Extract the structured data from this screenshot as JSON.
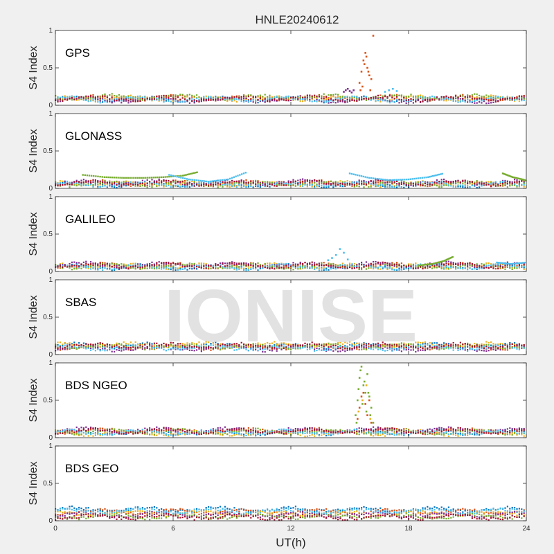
{
  "chart_data": {
    "type": "scatter",
    "title": "HNLE20240612",
    "xlabel": "UT(h)",
    "ylabel": "S4 Index",
    "xlim": [
      0,
      24
    ],
    "ylim": [
      0,
      1
    ],
    "xticks": [
      0,
      6,
      12,
      18,
      24
    ],
    "xtick_labels": [
      "0",
      "6",
      "12",
      "18",
      "24"
    ],
    "yticks": [
      0,
      0.5,
      1
    ],
    "ytick_labels": [
      "0",
      "0.5",
      "1"
    ],
    "watermark": "IONISE",
    "series_colors": [
      "#0072BD",
      "#D95319",
      "#EDB120",
      "#7E2F8E",
      "#77AC30",
      "#4DBEEE",
      "#A2142F"
    ],
    "panels": [
      {
        "label": "GPS",
        "baseline": [
          0.08,
          0.1,
          0.09,
          0.07,
          0.11,
          0.08,
          0.09
        ],
        "events": [
          {
            "color_index": 1,
            "x": [
              15.5,
              15.6,
              15.7,
              15.8,
              15.9,
              16.0,
              16.1,
              16.2,
              15.55,
              15.65,
              15.75,
              15.85,
              15.95,
              16.05
            ],
            "y": [
              0.3,
              0.45,
              0.6,
              0.7,
              0.5,
              0.4,
              0.35,
              0.93,
              0.2,
              0.25,
              0.55,
              0.65,
              0.45,
              0.2
            ]
          },
          {
            "color_index": 3,
            "x": [
              14.7,
              14.8,
              14.9,
              15.0,
              15.1,
              15.2
            ],
            "y": [
              0.18,
              0.2,
              0.22,
              0.19,
              0.17,
              0.2
            ]
          },
          {
            "color_index": 5,
            "x": [
              16.8,
              17.0,
              17.2,
              17.4
            ],
            "y": [
              0.18,
              0.2,
              0.22,
              0.19
            ]
          }
        ]
      },
      {
        "label": "GLONASS",
        "baseline": [
          0.05,
          0.07,
          0.06,
          0.08,
          0.06,
          0.05,
          0.07
        ],
        "arcs": [
          {
            "color_index": 4,
            "x": [
              1.4,
              2.5,
              3.5,
              4.5,
              5.5,
              6.5,
              7.3
            ],
            "y": [
              0.18,
              0.15,
              0.14,
              0.14,
              0.15,
              0.17,
              0.22
            ]
          },
          {
            "color_index": 5,
            "x": [
              5.8,
              6.8,
              7.8,
              8.8,
              9.8
            ],
            "y": [
              0.18,
              0.12,
              0.09,
              0.12,
              0.22
            ]
          },
          {
            "color_index": 5,
            "x": [
              15.0,
              16.0,
              17.0,
              18.0,
              19.0,
              19.8
            ],
            "y": [
              0.2,
              0.14,
              0.11,
              0.12,
              0.15,
              0.2
            ]
          },
          {
            "color_index": 4,
            "x": [
              22.8,
              23.3,
              23.8,
              24.0
            ],
            "y": [
              0.2,
              0.15,
              0.12,
              0.1
            ]
          }
        ]
      },
      {
        "label": "GALILEO",
        "baseline": [
          0.06,
          0.08,
          0.07,
          0.09,
          0.07,
          0.06,
          0.08
        ],
        "events": [
          {
            "color_index": 5,
            "x": [
              13.9,
              14.1,
              14.3,
              14.5,
              14.7,
              14.9
            ],
            "y": [
              0.15,
              0.18,
              0.22,
              0.3,
              0.25,
              0.16
            ]
          }
        ],
        "arcs": [
          {
            "color_index": 4,
            "x": [
              18.5,
              19.2,
              19.8,
              20.3
            ],
            "y": [
              0.08,
              0.1,
              0.14,
              0.2
            ]
          },
          {
            "color_index": 5,
            "x": [
              22.5,
              23.2,
              24.0
            ],
            "y": [
              0.12,
              0.1,
              0.12
            ]
          }
        ]
      },
      {
        "label": "SBAS",
        "baseline": [
          0.12,
          0.1,
          0.13,
          0.08,
          0.11,
          0.09,
          0.12
        ]
      },
      {
        "label": "BDS NGEO",
        "baseline": [
          0.07,
          0.09,
          0.06,
          0.1,
          0.08,
          0.07,
          0.09
        ],
        "events": [
          {
            "color_index": 4,
            "x": [
              15.3,
              15.4,
              15.5,
              15.6,
              15.7,
              15.8,
              15.9,
              16.0,
              16.1,
              16.2,
              15.35,
              15.45,
              15.55,
              15.65,
              15.75,
              15.85,
              15.95,
              16.05
            ],
            "y": [
              0.3,
              0.5,
              0.8,
              0.95,
              0.7,
              0.6,
              0.85,
              0.55,
              0.4,
              0.2,
              0.2,
              0.65,
              0.9,
              0.45,
              0.75,
              0.35,
              0.6,
              0.3
            ]
          },
          {
            "color_index": 1,
            "x": [
              15.4,
              15.5,
              15.6,
              15.7,
              15.8,
              15.9,
              16.0,
              16.1
            ],
            "y": [
              0.25,
              0.4,
              0.55,
              0.6,
              0.45,
              0.3,
              0.5,
              0.2
            ]
          },
          {
            "color_index": 2,
            "x": [
              15.45,
              15.65,
              15.85,
              16.05
            ],
            "y": [
              0.35,
              0.5,
              0.7,
              0.25
            ]
          }
        ]
      },
      {
        "label": "BDS GEO",
        "baseline": [
          0.15,
          0.12,
          0.1,
          0.08,
          0.06,
          0.13,
          0.05
        ]
      }
    ]
  }
}
